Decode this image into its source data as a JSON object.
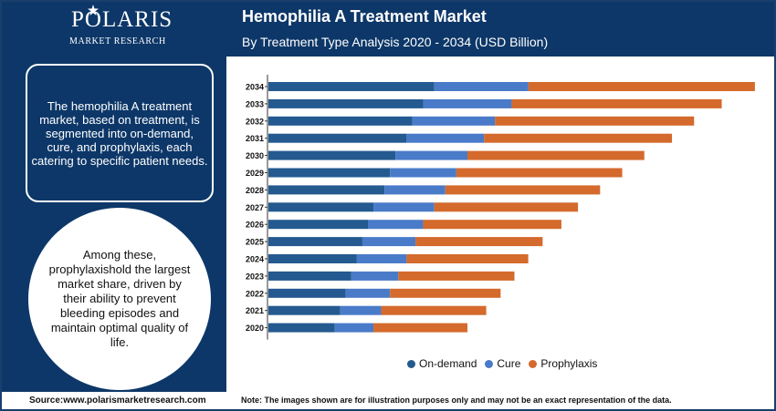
{
  "header": {
    "logo_title": "POLARIS",
    "logo_subtitle": "MARKET RESEARCH",
    "title": "Hemophilia A Treatment Market",
    "subtitle": "By Treatment Type Analysis 2020 - 2034 (USD Billion)"
  },
  "sidebar": {
    "box_text": "The hemophilia A treatment market, based on treatment, is segmented into on-demand, cure, and prophylaxis, each catering to specific patient needs.",
    "circle_text": "Among these, prophylaxishold the largest market share, driven by their ability to prevent bleeding episodes and maintain optimal quality of life."
  },
  "footer": {
    "source": "Source:www.polarismarketresearch.com",
    "note": "Note: The images shown are for illustration purposes only and may not be an exact representation of the data."
  },
  "colors": {
    "brand": "#0d3768",
    "on_demand": "#245a8f",
    "cure": "#4a7bc9",
    "prophylaxis": "#d46a2c"
  },
  "chart_data": {
    "type": "bar",
    "orientation": "horizontal",
    "stacked": true,
    "title": "Hemophilia A Treatment Market",
    "subtitle": "By Treatment Type Analysis 2020 - 2034 (USD Billion)",
    "categories": [
      "2034",
      "2033",
      "2032",
      "2031",
      "2030",
      "2029",
      "2028",
      "2027",
      "2026",
      "2025",
      "2024",
      "2023",
      "2022",
      "2021",
      "2020"
    ],
    "series": [
      {
        "name": "On-demand",
        "values": [
          3.0,
          2.8,
          2.6,
          2.5,
          2.3,
          2.2,
          2.1,
          1.9,
          1.8,
          1.7,
          1.6,
          1.5,
          1.4,
          1.3,
          1.2
        ]
      },
      {
        "name": "Cure",
        "values": [
          1.7,
          1.6,
          1.5,
          1.4,
          1.3,
          1.2,
          1.1,
          1.1,
          1.0,
          0.96,
          0.9,
          0.85,
          0.8,
          0.74,
          0.7
        ]
      },
      {
        "name": "Prophylaxis",
        "values": [
          4.1,
          3.8,
          3.6,
          3.4,
          3.2,
          3.0,
          2.8,
          2.6,
          2.5,
          2.3,
          2.2,
          2.1,
          2.0,
          1.9,
          1.7
        ]
      }
    ],
    "xlim": [
      0,
      9.0
    ],
    "xlabel": "",
    "ylabel": "",
    "grid": false,
    "legend": "bottom"
  }
}
